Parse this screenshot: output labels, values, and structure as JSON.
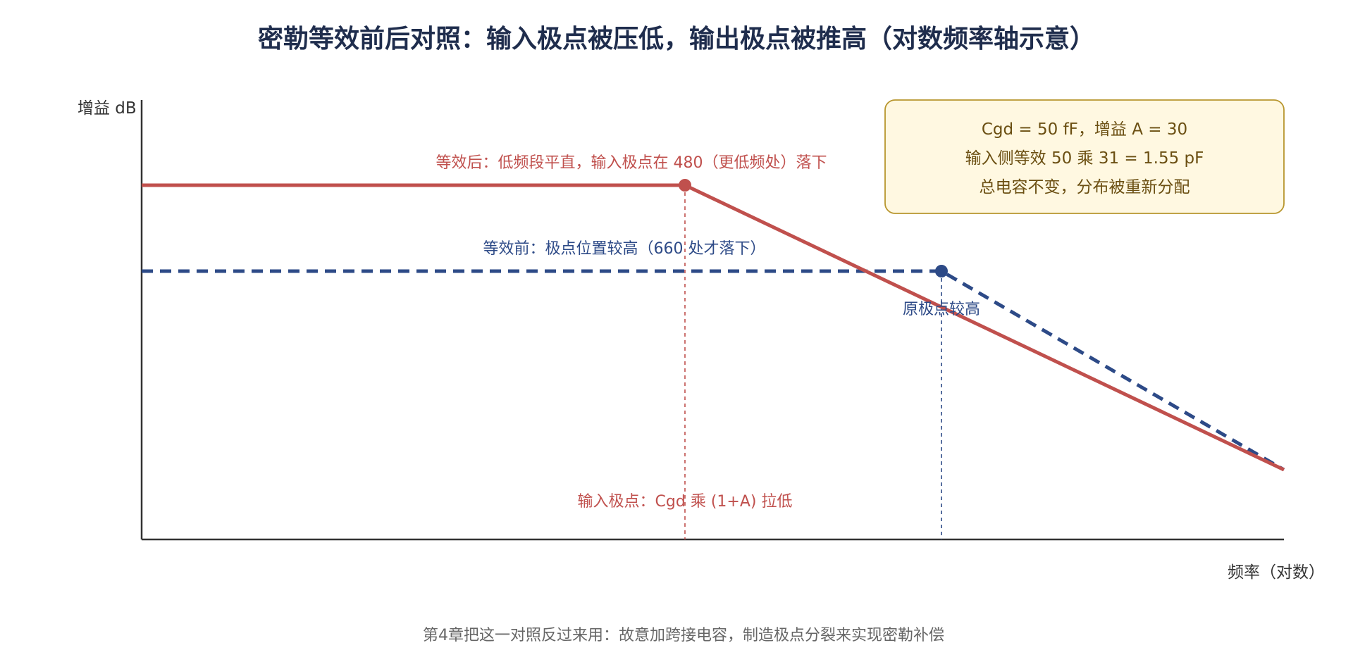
{
  "title": "密勒等效前后对照：输入极点被压低，输出极点被推高（对数频率轴示意）",
  "axes": {
    "y_label": "增益 dB",
    "x_label": "频率（对数）"
  },
  "curves": {
    "after": {
      "label": "等效后：低频段平直，输入极点在 480（更低频处）落下",
      "color": "#c0504d",
      "style": "solid"
    },
    "before": {
      "label": "等效前：极点位置较高（660 处才落下）",
      "color": "#2d4a87",
      "style": "dashed"
    }
  },
  "markers": {
    "input_pole_label": "输入极点：Cgd 乘 (1+A) 拉低",
    "original_pole_label": "原极点较高"
  },
  "note_box": {
    "line1": "Cgd = 50 fF，增益 A = 30",
    "line2": "输入侧等效 50 乘 31 = 1.55 pF",
    "line3": "总电容不变，分布被重新分配",
    "fill": "#fff8e1",
    "border": "#b8962e"
  },
  "caption": "第4章把这一对照反过来用：故意加跨接电容，制造极点分裂来实现密勒补偿",
  "colors": {
    "axis": "#333333",
    "title": "#1f2d4d"
  }
}
